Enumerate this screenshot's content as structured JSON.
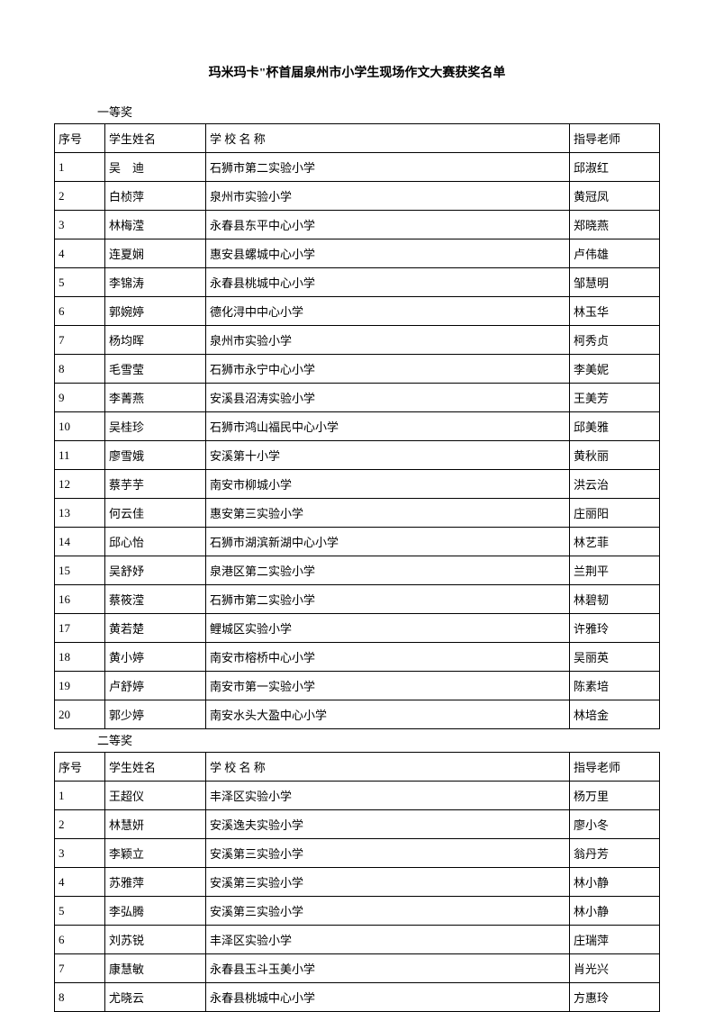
{
  "title": "玛米玛卡\"杯首届泉州市小学生现场作文大赛获奖名单",
  "sections": [
    {
      "label": "一等奖",
      "headers": {
        "num": "序号",
        "name": "学生姓名",
        "school": "学 校 名 称",
        "teacher": "指导老师"
      },
      "rows": [
        {
          "num": "1",
          "name": "吴　迪",
          "school": "石狮市第二实验小学",
          "teacher": "邱淑红"
        },
        {
          "num": "2",
          "name": "白桢萍",
          "school": "泉州市实验小学",
          "teacher": "黄冠凤"
        },
        {
          "num": "3",
          "name": "林梅滢",
          "school": "永春县东平中心小学",
          "teacher": "郑晓燕"
        },
        {
          "num": "4",
          "name": "连夏娴",
          "school": "惠安县螺城中心小学",
          "teacher": "卢伟雄"
        },
        {
          "num": "5",
          "name": "李锦涛",
          "school": "永春县桃城中心小学",
          "teacher": "邹慧明"
        },
        {
          "num": "6",
          "name": "郭婉婷",
          "school": "德化浔中中心小学",
          "teacher": "林玉华"
        },
        {
          "num": "7",
          "name": "杨均晖",
          "school": "泉州市实验小学",
          "teacher": "柯秀贞"
        },
        {
          "num": "8",
          "name": "毛雪莹",
          "school": "石狮市永宁中心小学",
          "teacher": "李美妮"
        },
        {
          "num": "9",
          "name": "李菁燕",
          "school": "安溪县沼涛实验小学",
          "teacher": "王美芳"
        },
        {
          "num": "10",
          "name": "吴桂珍",
          "school": "石狮市鸿山福民中心小学",
          "teacher": "邱美雅"
        },
        {
          "num": "11",
          "name": "廖雪娥",
          "school": "安溪第十小学",
          "teacher": "黄秋丽"
        },
        {
          "num": "12",
          "name": "蔡芋芋",
          "school": "南安市柳城小学",
          "teacher": "洪云治"
        },
        {
          "num": "13",
          "name": "何云佳",
          "school": "惠安第三实验小学",
          "teacher": "庄丽阳"
        },
        {
          "num": "14",
          "name": "邱心怡",
          "school": "石狮市湖滨新湖中心小学",
          "teacher": "林艺菲"
        },
        {
          "num": "15",
          "name": "吴舒妤",
          "school": "泉港区第二实验小学",
          "teacher": "兰荆平"
        },
        {
          "num": "16",
          "name": "蔡筱滢",
          "school": "石狮市第二实验小学",
          "teacher": "林碧韧"
        },
        {
          "num": "17",
          "name": "黄若楚",
          "school": "鲤城区实验小学",
          "teacher": "许雅玲"
        },
        {
          "num": "18",
          "name": "黄小婷",
          "school": "南安市榕桥中心小学",
          "teacher": "吴丽英"
        },
        {
          "num": "19",
          "name": "卢舒婷",
          "school": "南安市第一实验小学",
          "teacher": "陈素培"
        },
        {
          "num": "20",
          "name": "郭少婷",
          "school": "南安水头大盈中心小学",
          "teacher": "林培金"
        }
      ]
    },
    {
      "label": "二等奖",
      "headers": {
        "num": "序号",
        "name": "学生姓名",
        "school": "学 校 名 称",
        "teacher": "指导老师"
      },
      "rows": [
        {
          "num": "1",
          "name": "王超仪",
          "school": "丰泽区实验小学",
          "teacher": "杨万里"
        },
        {
          "num": "2",
          "name": "林慧妍",
          "school": "安溪逸夫实验小学",
          "teacher": "廖小冬"
        },
        {
          "num": "3",
          "name": "李颖立",
          "school": "安溪第三实验小学",
          "teacher": "翁丹芳"
        },
        {
          "num": "4",
          "name": "苏雅萍",
          "school": "安溪第三实验小学",
          "teacher": "林小静"
        },
        {
          "num": "5",
          "name": "李弘腾",
          "school": "安溪第三实验小学",
          "teacher": "林小静"
        },
        {
          "num": "6",
          "name": "刘苏锐",
          "school": "丰泽区实验小学",
          "teacher": "庄瑞萍"
        },
        {
          "num": "7",
          "name": "康慧敏",
          "school": "永春县玉斗玉美小学",
          "teacher": " 肖光兴"
        },
        {
          "num": "8",
          "name": "尤晓云",
          "school": "永春县桃城中心小学",
          "teacher": "方惠玲"
        }
      ]
    }
  ]
}
